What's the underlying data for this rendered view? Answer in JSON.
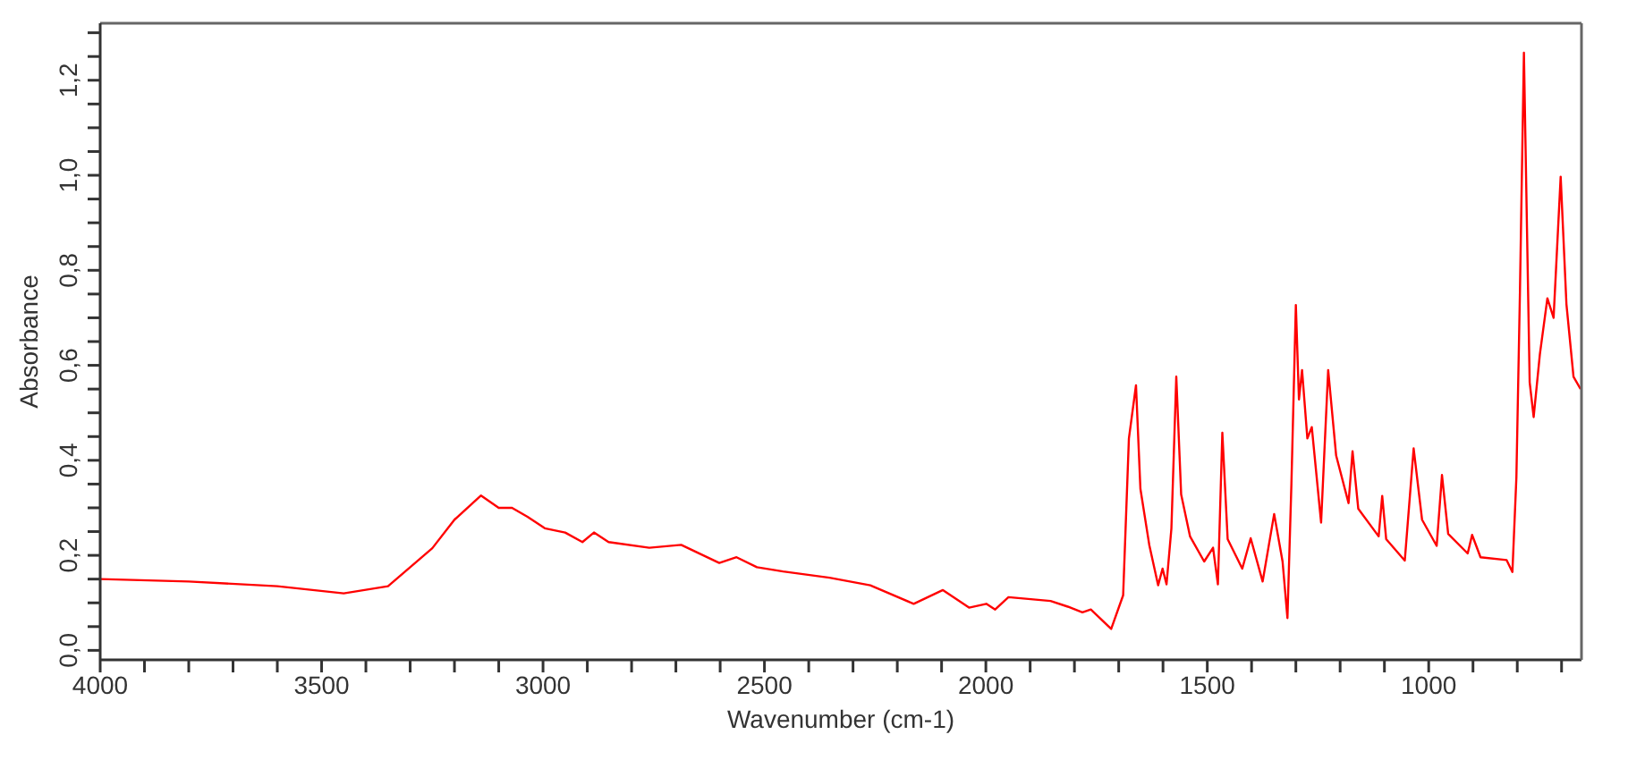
{
  "chart_data": {
    "type": "line",
    "xlabel": "Wavenumber (cm-1)",
    "ylabel": "Absorbance",
    "xlim": [
      4000,
      655
    ],
    "ylim": [
      -0.02,
      1.32
    ],
    "xticks": [
      4000,
      {
        "value": 3900,
        "label": null
      },
      {
        "value": 3800,
        "label": null
      },
      {
        "value": 3700,
        "label": null
      },
      {
        "value": 3600,
        "label": null
      },
      3500,
      {
        "value": 3400,
        "label": null
      },
      {
        "value": 3300,
        "label": null
      },
      {
        "value": 3200,
        "label": null
      },
      {
        "value": 3100,
        "label": null
      },
      3000,
      {
        "value": 2900,
        "label": null
      },
      {
        "value": 2800,
        "label": null
      },
      {
        "value": 2700,
        "label": null
      },
      {
        "value": 2600,
        "label": null
      },
      2500,
      {
        "value": 2400,
        "label": null
      },
      {
        "value": 2300,
        "label": null
      },
      {
        "value": 2200,
        "label": null
      },
      {
        "value": 2100,
        "label": null
      },
      2000,
      {
        "value": 1900,
        "label": null
      },
      {
        "value": 1800,
        "label": null
      },
      {
        "value": 1700,
        "label": null
      },
      {
        "value": 1600,
        "label": null
      },
      1500,
      {
        "value": 1400,
        "label": null
      },
      {
        "value": 1300,
        "label": null
      },
      {
        "value": 1200,
        "label": null
      },
      {
        "value": 1100,
        "label": null
      },
      1000,
      {
        "value": 900,
        "label": null
      },
      {
        "value": 800,
        "label": null
      },
      {
        "value": 700,
        "label": null
      }
    ],
    "yticks": [
      {
        "value": 0,
        "label": "0,0"
      },
      {
        "value": 0.05,
        "label": null
      },
      {
        "value": 0.1,
        "label": null
      },
      {
        "value": 0.15,
        "label": null
      },
      {
        "value": 0.2,
        "label": "0,2"
      },
      {
        "value": 0.25,
        "label": null
      },
      {
        "value": 0.3,
        "label": null
      },
      {
        "value": 0.35,
        "label": null
      },
      {
        "value": 0.4,
        "label": "0,4"
      },
      {
        "value": 0.45,
        "label": null
      },
      {
        "value": 0.5,
        "label": null
      },
      {
        "value": 0.55,
        "label": null
      },
      {
        "value": 0.6,
        "label": "0,6"
      },
      {
        "value": 0.65,
        "label": null
      },
      {
        "value": 0.7,
        "label": null
      },
      {
        "value": 0.75,
        "label": null
      },
      {
        "value": 0.8,
        "label": "0,8"
      },
      {
        "value": 0.85,
        "label": null
      },
      {
        "value": 0.9,
        "label": null
      },
      {
        "value": 0.95,
        "label": null
      },
      {
        "value": 1.0,
        "label": "1,0"
      },
      {
        "value": 1.05,
        "label": null
      },
      {
        "value": 1.1,
        "label": null
      },
      {
        "value": 1.15,
        "label": null
      },
      {
        "value": 1.2,
        "label": "1,2"
      },
      {
        "value": 1.25,
        "label": null
      },
      {
        "value": 1.3,
        "label": null
      }
    ],
    "grid": false,
    "legend": false,
    "marker": "none",
    "line_style": "solid",
    "series": [
      {
        "color": "#ff0000",
        "x": [
          4000,
          3800,
          3600,
          3450,
          3350,
          3250,
          3200,
          3140,
          3100,
          3070,
          3035,
          2996,
          2950,
          2911,
          2885,
          2852,
          2760,
          2688,
          2602,
          2563,
          2517,
          2458,
          2353,
          2261,
          2163,
          2097,
          2038,
          1999,
          1979,
          1949,
          1854,
          1815,
          1782,
          1763,
          1717,
          1690,
          1677,
          1661,
          1651,
          1631,
          1611,
          1601,
          1592,
          1581,
          1570,
          1559,
          1539,
          1507,
          1487,
          1476,
          1466,
          1454,
          1421,
          1402,
          1375,
          1349,
          1330,
          1319,
          1310,
          1300,
          1293,
          1286,
          1274,
          1264,
          1243,
          1227,
          1209,
          1181,
          1172,
          1159,
          1113,
          1105,
          1096,
          1054,
          1034,
          1015,
          982,
          970,
          956,
          912,
          902,
          883,
          824,
          811,
          802,
          794,
          785,
          772,
          763,
          749,
          732,
          718,
          702,
          689,
          673,
          657
        ],
        "values": [
          0.15,
          0.145,
          0.135,
          0.12,
          0.135,
          0.215,
          0.275,
          0.326,
          0.3,
          0.3,
          0.281,
          0.257,
          0.248,
          0.228,
          0.248,
          0.228,
          0.216,
          0.222,
          0.184,
          0.196,
          0.175,
          0.166,
          0.153,
          0.137,
          0.098,
          0.127,
          0.09,
          0.098,
          0.086,
          0.112,
          0.104,
          0.092,
          0.08,
          0.086,
          0.045,
          0.116,
          0.446,
          0.558,
          0.34,
          0.222,
          0.137,
          0.172,
          0.139,
          0.257,
          0.576,
          0.328,
          0.24,
          0.187,
          0.216,
          0.139,
          0.458,
          0.234,
          0.172,
          0.236,
          0.145,
          0.287,
          0.187,
          0.068,
          0.351,
          0.727,
          0.528,
          0.59,
          0.446,
          0.47,
          0.269,
          0.59,
          0.41,
          0.31,
          0.419,
          0.298,
          0.24,
          0.325,
          0.234,
          0.189,
          0.425,
          0.275,
          0.22,
          0.369,
          0.245,
          0.204,
          0.243,
          0.196,
          0.19,
          0.165,
          0.364,
          0.753,
          1.258,
          0.564,
          0.491,
          0.623,
          0.741,
          0.7,
          0.997,
          0.729,
          0.576,
          0.55
        ]
      }
    ]
  }
}
